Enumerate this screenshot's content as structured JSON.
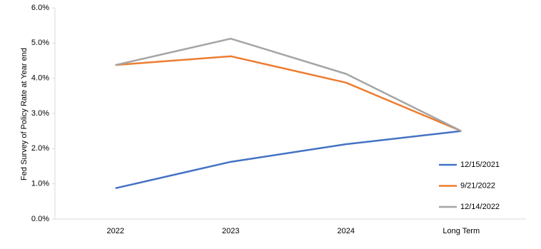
{
  "chart_data": {
    "type": "line",
    "y_label": "Fed Survey of Policy Rate at Year end",
    "categories": [
      "2022",
      "2023",
      "2024",
      "Long Term"
    ],
    "series": [
      {
        "name": "12/15/2021",
        "color": "#4472c4",
        "values": [
          0.875,
          1.625,
          2.125,
          2.5
        ]
      },
      {
        "name": "9/21/2022",
        "color": "#ed7d31",
        "values": [
          4.375,
          4.625,
          3.875,
          2.5
        ]
      },
      {
        "name": "12/14/2022",
        "color": "#a5a5a5",
        "values": [
          4.375,
          5.125,
          4.125,
          2.5
        ]
      }
    ],
    "ylim": [
      0,
      6
    ],
    "yticks": [
      {
        "value": 0,
        "label": "0.0%"
      },
      {
        "value": 1,
        "label": "1.0%"
      },
      {
        "value": 2,
        "label": "2.0%"
      },
      {
        "value": 3,
        "label": "3.0%"
      },
      {
        "value": 4,
        "label": "4.0%"
      },
      {
        "value": 5,
        "label": "5.0%"
      },
      {
        "value": 6,
        "label": "6.0%"
      }
    ],
    "grid": false,
    "legend": "right"
  }
}
